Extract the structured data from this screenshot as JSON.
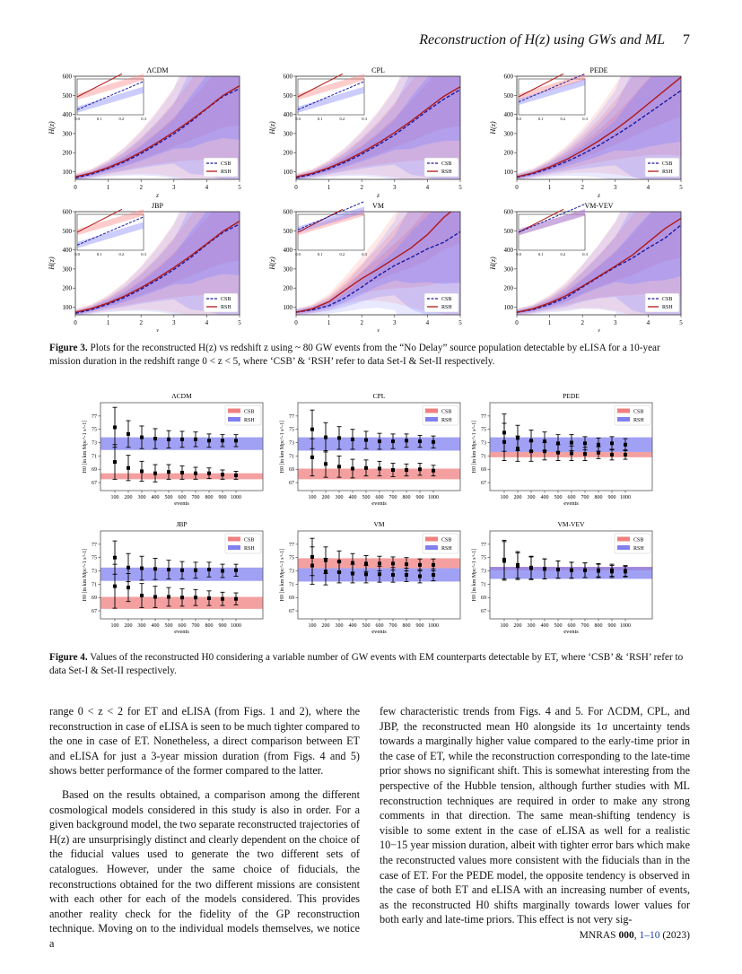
{
  "header": {
    "title": "Reconstruction of H(z) using GWs and ML",
    "page_number": "7"
  },
  "figure3": {
    "caption_label": "Figure 3.",
    "caption_text": "Plots for the reconstructed H(z) vs redshift z using ~ 80 GW events from the “No Delay” source population detectable by eLISA for a 10-year mission duration in the redshift range 0 < z < 5, where ‘CSB’ & ‘RSH’ refer to data Set-I & Set-II respectively."
  },
  "figure4": {
    "caption_label": "Figure 4.",
    "caption_text": "Values of the reconstructed H0 considering a variable number of GW events with EM counterparts detectable by ET, where ‘CSB’ & ‘RSH’ refer to data Set-I & Set-II respectively."
  },
  "chart_data": [
    {
      "figure": "Figure 3",
      "type": "line",
      "xlabel": "z",
      "ylabel": "H(z)",
      "xlim": [
        0,
        5
      ],
      "ylim": [
        60,
        600
      ],
      "xticks": [
        0,
        1,
        2,
        3,
        4,
        5
      ],
      "yticks": [
        100,
        200,
        300,
        400,
        500,
        600
      ],
      "inset_xticks": [
        "0.0",
        "0.1",
        "0.2",
        "0.3"
      ],
      "legend": "bottom-right",
      "colors": {
        "CSB": "#1a1aa0",
        "RSH": "#b01818",
        "CSB_band": "#8080ff",
        "RSH_band": "#ff8080"
      },
      "x": [
        0,
        0.5,
        1,
        1.5,
        2,
        2.5,
        3,
        3.5,
        4,
        4.5,
        5
      ],
      "panels": [
        {
          "title": "ΛCDM",
          "series": [
            {
              "name": "CSB",
              "values": [
                68,
                88,
                117,
                152,
                195,
                245,
                298,
                360,
                430,
                495,
                535
              ]
            },
            {
              "name": "RSH",
              "values": [
                73,
                93,
                122,
                158,
                203,
                253,
                308,
                368,
                432,
                500,
                550
              ]
            }
          ]
        },
        {
          "title": "CPL",
          "series": [
            {
              "name": "CSB",
              "values": [
                68,
                87,
                115,
                150,
                192,
                240,
                293,
                355,
                420,
                480,
                530
              ]
            },
            {
              "name": "RSH",
              "values": [
                73,
                92,
                121,
                157,
                201,
                250,
                305,
                365,
                430,
                495,
                545
              ]
            }
          ]
        },
        {
          "title": "PEDE",
          "series": [
            {
              "name": "CSB",
              "values": [
                71,
                90,
                118,
                152,
                192,
                238,
                290,
                345,
                405,
                465,
                525
              ]
            },
            {
              "name": "RSH",
              "values": [
                73,
                94,
                125,
                163,
                210,
                262,
                320,
                385,
                455,
                525,
                595
              ]
            }
          ]
        },
        {
          "title": "JBP",
          "series": [
            {
              "name": "CSB",
              "values": [
                68,
                88,
                116,
                151,
                194,
                243,
                297,
                358,
                428,
                492,
                535
              ]
            },
            {
              "name": "RSH",
              "values": [
                73,
                93,
                122,
                158,
                202,
                252,
                307,
                367,
                432,
                498,
                550
              ]
            }
          ]
        },
        {
          "title": "VM",
          "series": [
            {
              "name": "CSB",
              "values": [
                74,
                86,
                108,
                150,
                205,
                265,
                318,
                360,
                405,
                440,
                495
              ]
            },
            {
              "name": "RSH",
              "values": [
                73,
                92,
                128,
                190,
                250,
                300,
                355,
                410,
                480,
                570,
                640
              ]
            }
          ]
        },
        {
          "title": "VM-VEV",
          "series": [
            {
              "name": "CSB",
              "values": [
                73,
                88,
                115,
                150,
                205,
                258,
                310,
                355,
                410,
                460,
                530
              ]
            },
            {
              "name": "RSH",
              "values": [
                73,
                92,
                122,
                160,
                210,
                262,
                315,
                370,
                440,
                510,
                565
              ]
            }
          ]
        }
      ]
    },
    {
      "figure": "Figure 4",
      "type": "scatter",
      "xlabel": "events",
      "ylabel": "H0 [in km Mpc^-1 s^-1]",
      "ylim": [
        65.8,
        79
      ],
      "yticks": [
        67,
        69,
        71,
        73,
        75,
        77
      ],
      "categories": [
        100,
        200,
        300,
        400,
        500,
        600,
        700,
        800,
        900,
        1000
      ],
      "legend": "top-right",
      "colors": {
        "CSB": "#f08080",
        "RSH": "#8080f0",
        "points": "#000000"
      },
      "panels": [
        {
          "title": "ΛCDM",
          "bands": {
            "CSB": [
              67.5,
              68.4
            ],
            "RSH": [
              71.9,
              73.8
            ]
          },
          "series": [
            {
              "name": "RSH",
              "values": [
                75.3,
                74.3,
                73.8,
                73.6,
                73.5,
                73.5,
                73.5,
                73.3,
                73.3,
                73.3
              ],
              "errors": [
                3.0,
                2.0,
                1.7,
                1.5,
                1.3,
                1.2,
                1.1,
                1.0,
                0.9,
                0.9
              ]
            },
            {
              "name": "CSB",
              "values": [
                70.1,
                69.2,
                68.7,
                68.4,
                68.6,
                68.5,
                68.4,
                68.4,
                68.2,
                68.1
              ],
              "errors": [
                2.6,
                1.9,
                1.5,
                1.3,
                1.1,
                1.0,
                0.9,
                0.8,
                0.7,
                0.6
              ]
            }
          ]
        },
        {
          "title": "CPL",
          "bands": {
            "CSB": [
              67.5,
              69.1
            ],
            "RSH": [
              71.8,
              73.8
            ]
          },
          "series": [
            {
              "name": "RSH",
              "values": [
                75.0,
                73.8,
                73.7,
                73.5,
                73.4,
                73.2,
                73.2,
                73.3,
                73.2,
                73.1
              ],
              "errors": [
                2.9,
                2.2,
                1.7,
                1.5,
                1.3,
                1.2,
                1.1,
                1.0,
                0.9,
                0.9
              ]
            },
            {
              "name": "CSB",
              "values": [
                70.8,
                69.8,
                69.4,
                69.1,
                69.2,
                69.1,
                68.9,
                68.9,
                69.0,
                68.8
              ],
              "errors": [
                2.8,
                2.0,
                1.6,
                1.4,
                1.2,
                1.1,
                1.0,
                0.9,
                0.9,
                0.8
              ]
            }
          ]
        },
        {
          "title": "PEDE",
          "bands": {
            "CSB": [
              70.8,
              71.6
            ],
            "RSH": [
              71.6,
              73.8
            ]
          },
          "series": [
            {
              "name": "RSH",
              "values": [
                73.1,
                72.1,
                73.3,
                73.2,
                72.9,
                73.0,
                72.9,
                72.7,
                72.9,
                72.7
              ],
              "errors": [
                2.8,
                1.9,
                1.6,
                1.4,
                1.3,
                1.2,
                1.0,
                1.0,
                1.0,
                0.9
              ]
            },
            {
              "name": "CSB",
              "values": [
                74.5,
                73.7,
                71.7,
                71.7,
                71.5,
                71.4,
                71.3,
                71.5,
                71.2,
                71.2
              ],
              "errors": [
                2.8,
                1.9,
                1.5,
                1.3,
                1.2,
                1.1,
                1.0,
                0.9,
                0.8,
                0.7
              ]
            }
          ]
        },
        {
          "title": "JBP",
          "bands": {
            "CSB": [
              67.3,
              69.1
            ],
            "RSH": [
              71.5,
              73.5
            ]
          },
          "series": [
            {
              "name": "RSH",
              "values": [
                75.0,
                73.5,
                73.4,
                73.3,
                73.2,
                73.1,
                73.1,
                73.2,
                73.0,
                73.1
              ],
              "errors": [
                2.5,
                2.1,
                1.8,
                1.6,
                1.4,
                1.3,
                1.2,
                1.1,
                1.0,
                0.9
              ]
            },
            {
              "name": "CSB",
              "values": [
                70.7,
                70.5,
                69.3,
                69.1,
                69.1,
                69.0,
                69.0,
                68.9,
                68.8,
                68.8
              ],
              "errors": [
                3.3,
                2.1,
                1.8,
                1.6,
                1.4,
                1.3,
                1.2,
                1.1,
                1.0,
                0.9
              ]
            }
          ]
        },
        {
          "title": "VM",
          "bands": {
            "CSB": [
              73.4,
              74.9
            ],
            "RSH": [
              71.4,
              73.4
            ]
          },
          "series": [
            {
              "name": "CSB",
              "values": [
                75.1,
                74.6,
                74.4,
                74.2,
                74.1,
                74.1,
                74.1,
                74.0,
                73.9,
                73.9
              ],
              "errors": [
                2.8,
                2.0,
                1.6,
                1.4,
                1.2,
                1.1,
                1.0,
                1.0,
                0.9,
                0.9
              ]
            },
            {
              "name": "RSH",
              "values": [
                73.8,
                72.9,
                72.8,
                72.6,
                72.5,
                72.5,
                72.4,
                72.4,
                72.2,
                72.4
              ],
              "errors": [
                2.8,
                2.0,
                1.6,
                1.4,
                1.3,
                1.2,
                1.1,
                1.0,
                1.0,
                0.9
              ]
            }
          ]
        },
        {
          "title": "VM-VEV",
          "bands": {
            "CSB": [
              73.1,
              73.6
            ],
            "RSH": [
              71.8,
              73.6
            ]
          },
          "series": [
            {
              "name": "CSB",
              "values": [
                74.7,
                73.9,
                73.5,
                73.3,
                73.2,
                73.1,
                73.1,
                73.1,
                73.1,
                73.0
              ],
              "errors": [
                2.9,
                2.0,
                1.7,
                1.5,
                1.3,
                1.2,
                1.1,
                1.0,
                0.9,
                0.8
              ]
            },
            {
              "name": "RSH",
              "values": [
                74.5,
                73.7,
                73.4,
                73.3,
                73.2,
                73.1,
                73.1,
                73.0,
                72.9,
                72.9
              ],
              "errors": [
                2.9,
                2.0,
                1.7,
                1.5,
                1.3,
                1.2,
                1.1,
                1.0,
                0.9,
                0.8
              ]
            }
          ]
        }
      ]
    }
  ],
  "body": {
    "left_col": [
      "range 0 < z < 2 for ET and eLISA (from Figs. 1 and 2), where the reconstruction in case of eLISA is seen to be much tighter compared to the one in case of ET. Nonetheless, a direct comparison between ET and eLISA for just a 3-year mission duration (from Figs. 4 and 5) shows better performance of the former compared to the latter.",
      "Based on the results obtained, a comparison among the different cosmological models considered in this study is also in order. For a given background model, the two separate reconstructed trajectories of H(z) are unsurprisingly distinct and clearly dependent on the choice of the fiducial values used to generate the two different sets of catalogues. However, under the same choice of fiducials, the reconstructions obtained for the two different missions are consistent with each other for each of the models considered. This provides another reality check for the fidelity of the GP reconstruction technique. Moving on to the individual models themselves, we notice a"
    ],
    "right_col": [
      "few characteristic trends from Figs. 4 and 5. For ΛCDM, CPL, and JBP, the reconstructed mean H0 alongside its 1σ uncertainty tends towards a marginally higher value compared to the early-time prior in the case of ET, while the reconstruction corresponding to the late-time prior shows no significant shift. This is somewhat interesting from the perspective of the Hubble tension, although further studies with ML reconstruction techniques are required in order to make any strong comments in that direction. The same mean-shifting tendency is visible to some extent in the case of eLISA as well for a realistic 10−15 year mission duration, albeit with tighter error bars which make the reconstructed values more consistent with the fiducials than in the case of ET. For the PEDE model, the opposite tendency is observed in the case of both ET and eLISA with an increasing number of events, as the reconstructed H0 shifts marginally towards lower values for both early and late-time priors. This effect is not very sig-"
    ]
  },
  "footer": {
    "journal": "MNRAS",
    "volume": "000",
    "pages": "1–10",
    "year": "(2023)"
  }
}
